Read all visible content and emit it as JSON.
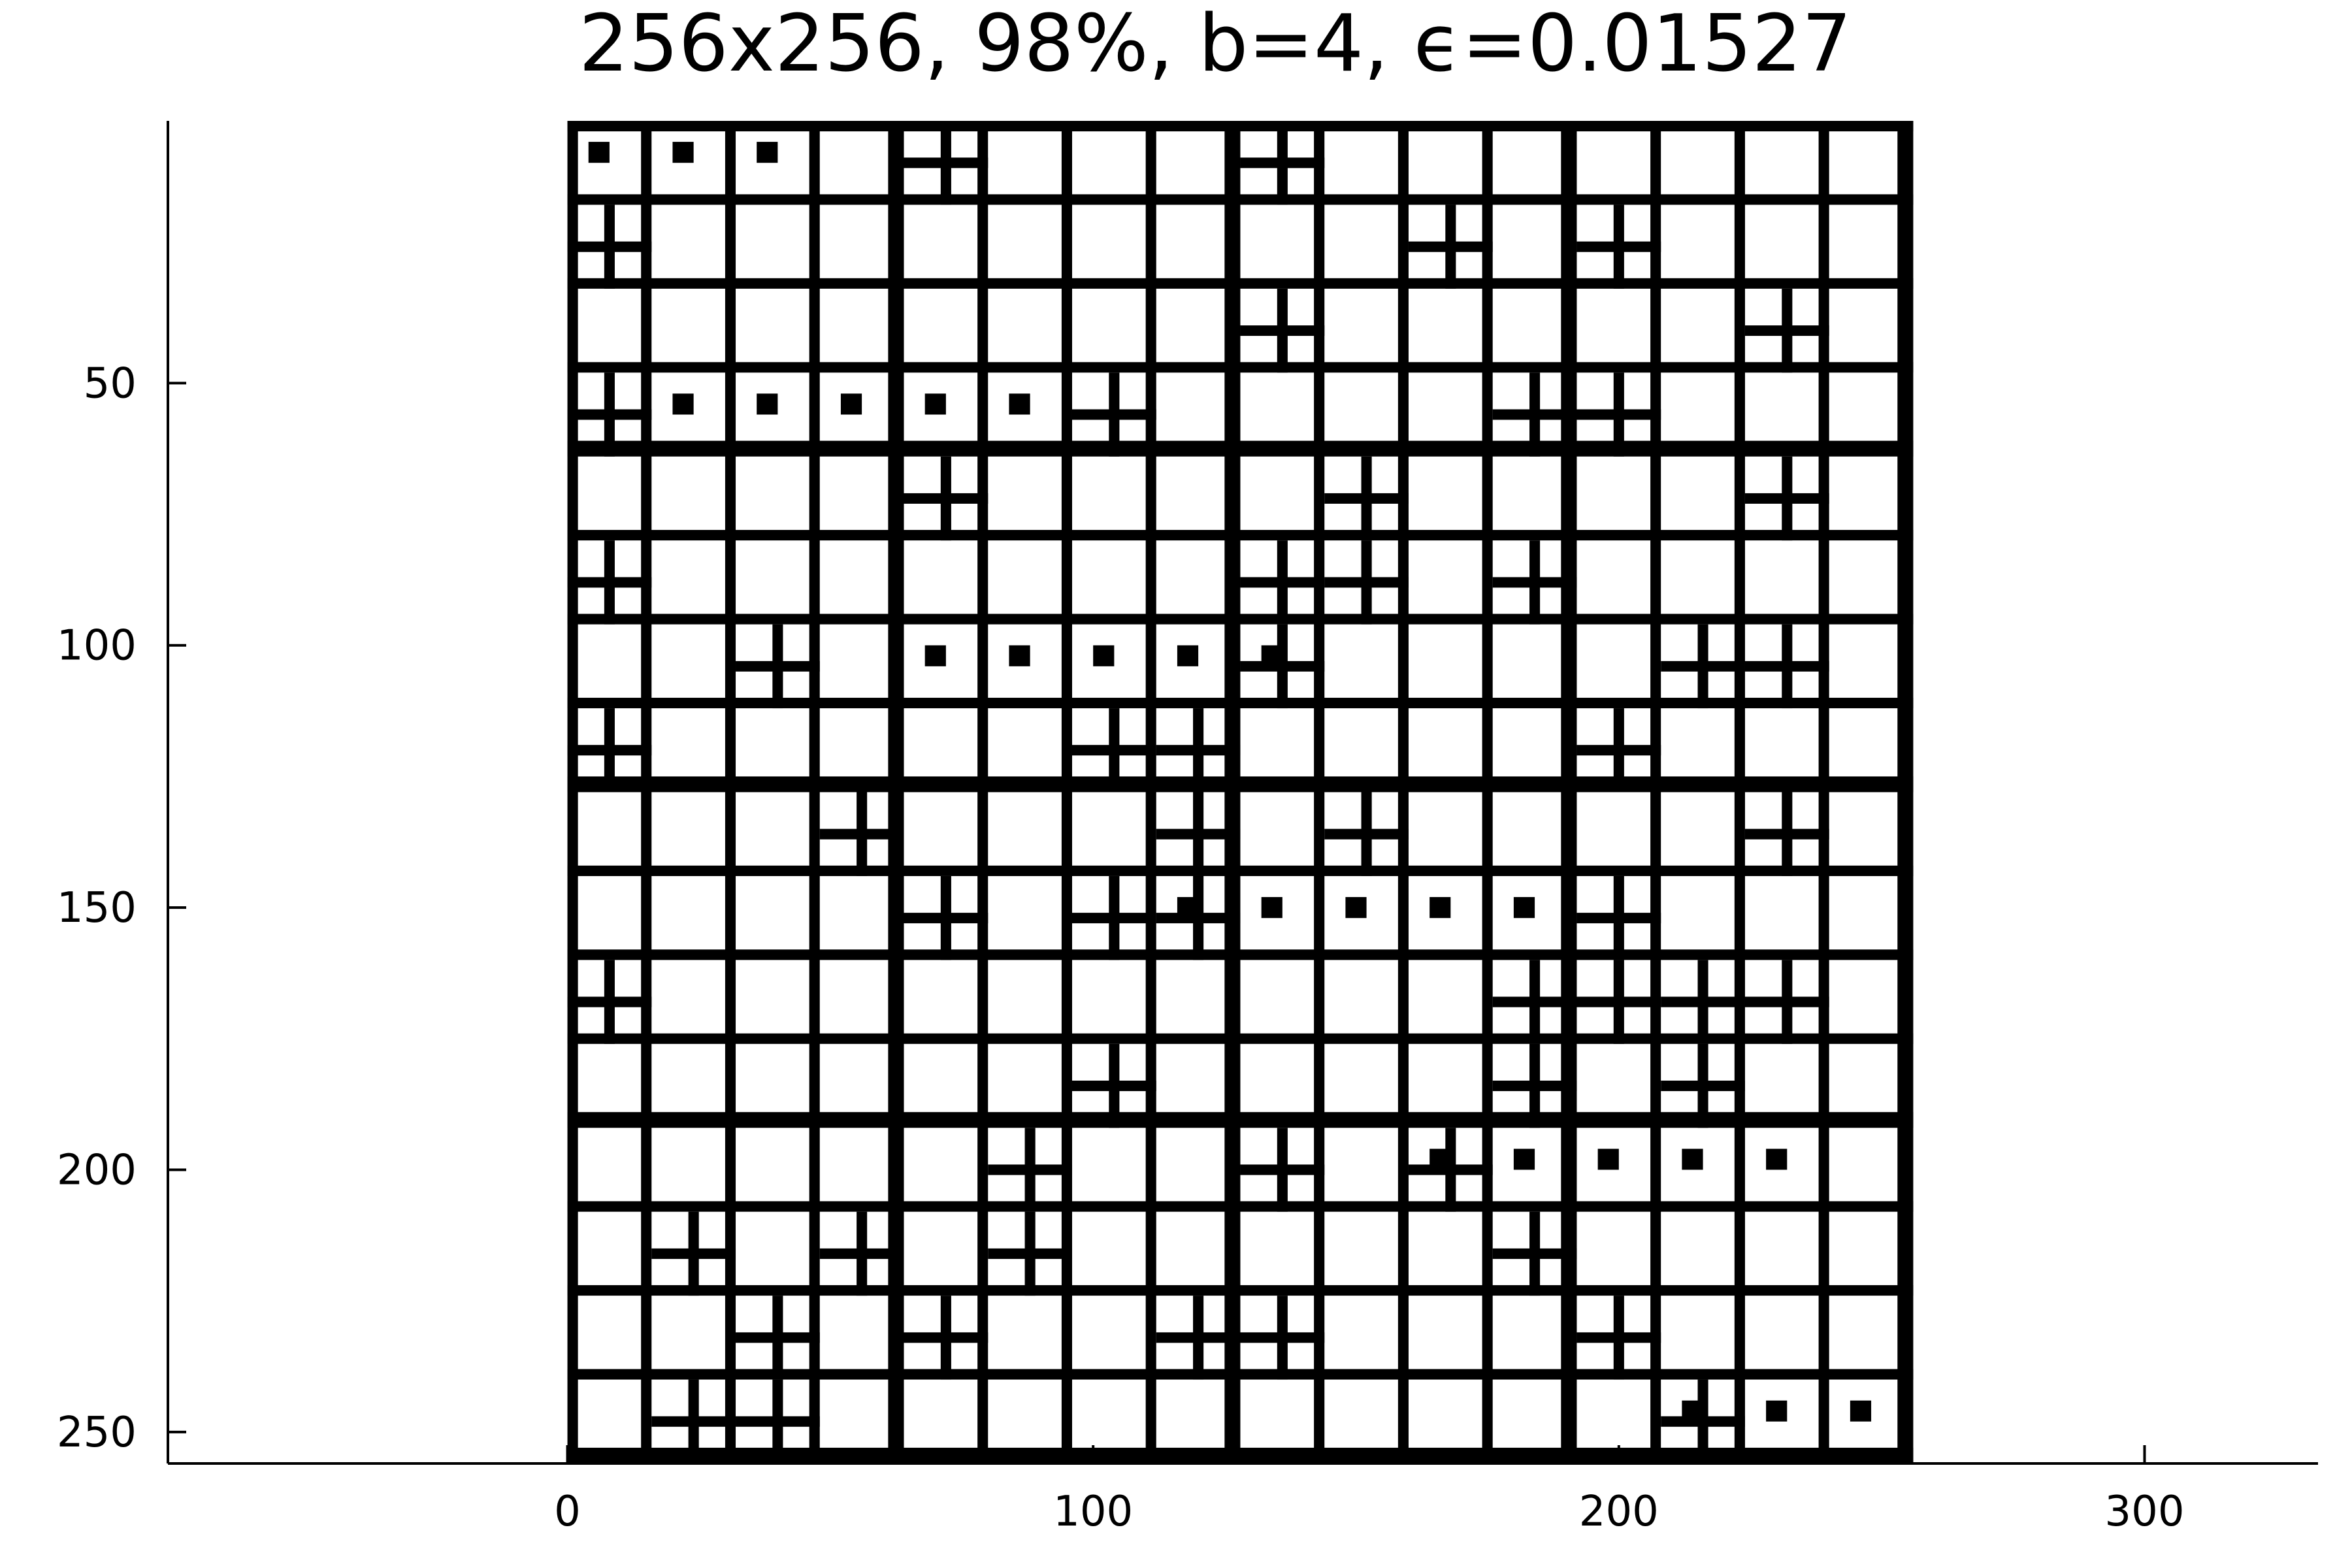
{
  "chart_data": {
    "type": "heatmap",
    "title": "256x256, 98%, b=4, ϵ=0.01527",
    "xlabel": "",
    "ylabel": "",
    "grid": false,
    "legend": "none",
    "colors": {
      "block": "#000000",
      "background": "#ffffff"
    },
    "matrix_size": [
      256,
      256
    ],
    "block_size": 4,
    "x_range": [
      -76,
      333
    ],
    "y_range": [
      256,
      0
    ],
    "x_ticks": [
      0,
      100,
      200,
      300
    ],
    "y_ticks": [
      50,
      100,
      150,
      200,
      250
    ],
    "x_tick_labels": [
      "0",
      "100",
      "200",
      "300"
    ],
    "y_tick_labels": [
      "50",
      "100",
      "150",
      "200",
      "250"
    ],
    "coarse_cell_size": 16,
    "fine_subdivided_cells": [
      [
        0,
        4
      ],
      [
        0,
        8
      ],
      [
        1,
        0
      ],
      [
        1,
        10
      ],
      [
        1,
        12
      ],
      [
        2,
        8
      ],
      [
        2,
        14
      ],
      [
        3,
        0
      ],
      [
        3,
        11
      ],
      [
        3,
        12
      ],
      [
        4,
        4
      ],
      [
        4,
        9
      ],
      [
        4,
        14
      ],
      [
        5,
        0
      ],
      [
        5,
        8
      ],
      [
        5,
        9
      ],
      [
        5,
        11
      ],
      [
        6,
        8
      ],
      [
        6,
        13
      ],
      [
        6,
        14
      ],
      [
        7,
        0
      ],
      [
        7,
        6
      ],
      [
        7,
        7
      ],
      [
        7,
        12
      ],
      [
        8,
        3
      ],
      [
        8,
        7
      ],
      [
        8,
        9
      ],
      [
        8,
        14
      ],
      [
        9,
        4
      ],
      [
        9,
        6
      ],
      [
        9,
        7
      ],
      [
        9,
        12
      ],
      [
        10,
        0
      ],
      [
        10,
        11
      ],
      [
        10,
        12
      ],
      [
        10,
        13
      ],
      [
        10,
        14
      ],
      [
        11,
        6
      ],
      [
        11,
        11
      ],
      [
        11,
        13
      ],
      [
        12,
        5
      ],
      [
        12,
        8
      ],
      [
        13,
        1
      ],
      [
        13,
        3
      ],
      [
        13,
        5
      ],
      [
        13,
        11
      ],
      [
        14,
        2
      ],
      [
        14,
        7
      ],
      [
        14,
        8
      ],
      [
        14,
        12
      ],
      [
        15,
        1
      ],
      [
        15,
        2
      ],
      [
        15,
        13
      ],
      [
        3,
        6
      ],
      [
        6,
        2
      ],
      [
        12,
        10
      ],
      [
        14,
        4
      ]
    ]
  }
}
